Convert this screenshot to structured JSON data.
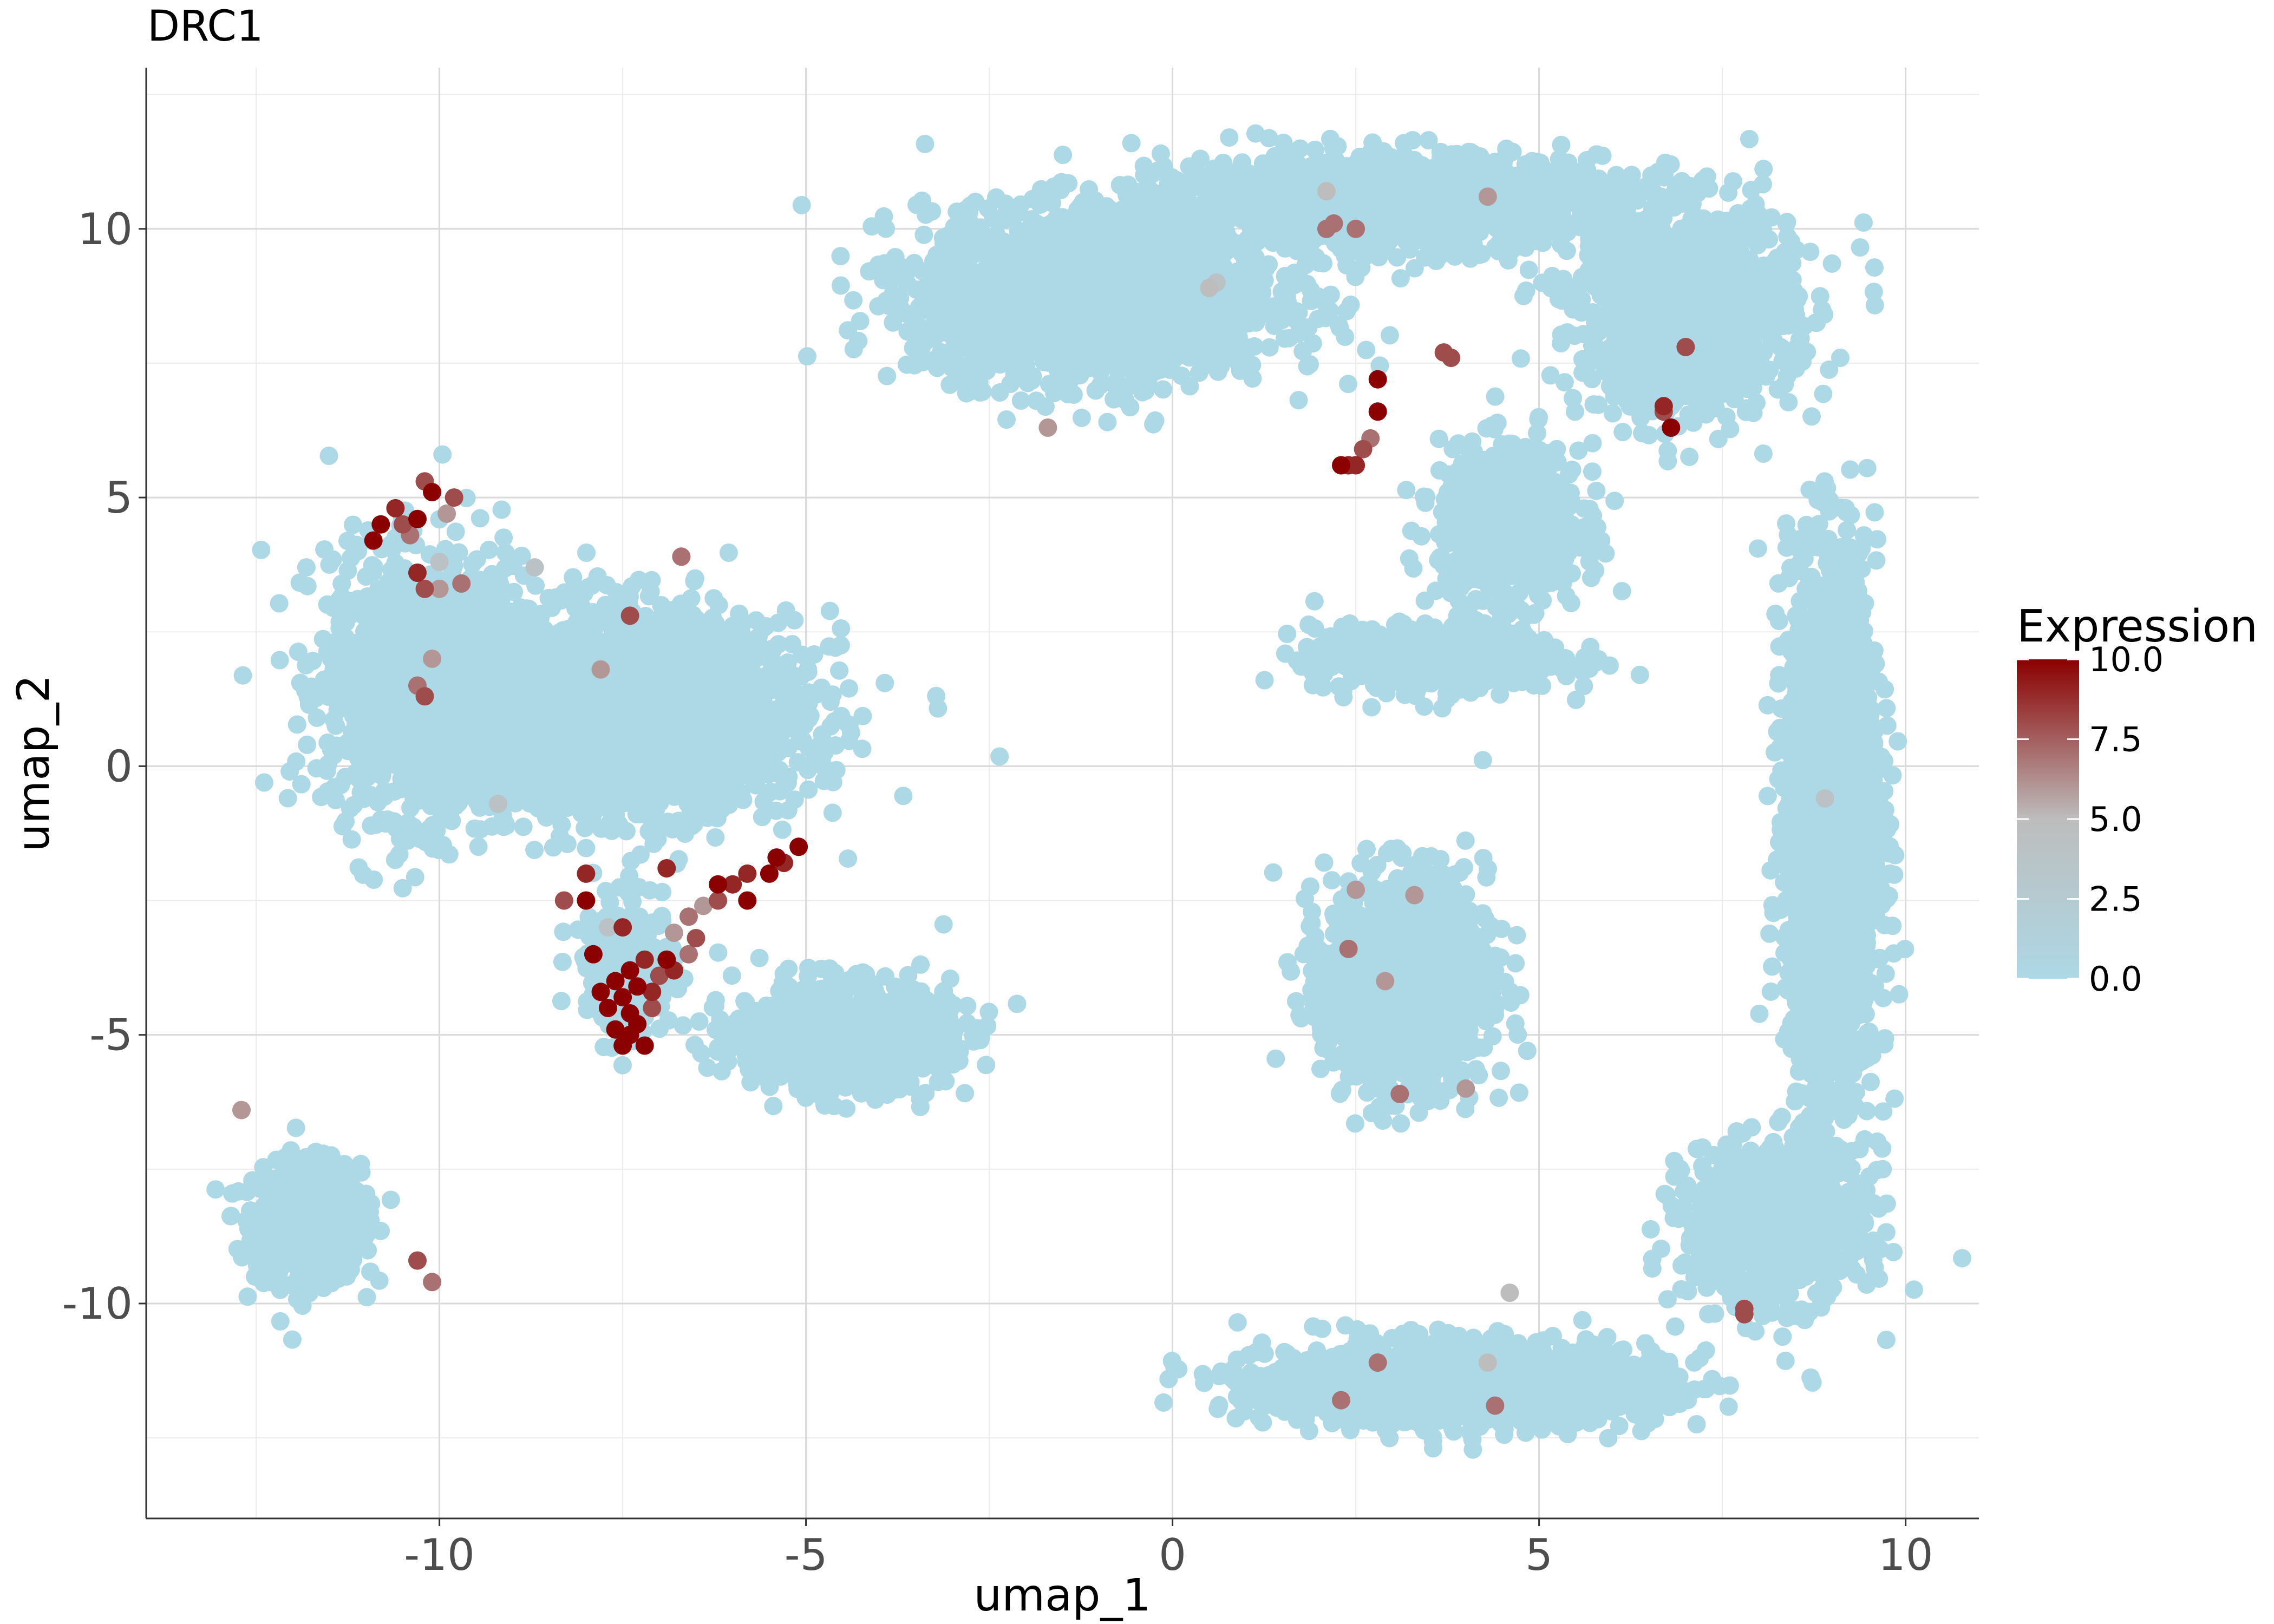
{
  "chart_data": {
    "type": "scatter",
    "title": "DRC1",
    "xlabel": "umap_1",
    "ylabel": "umap_2",
    "xlim": [
      -14,
      11
    ],
    "ylim": [
      -14,
      13
    ],
    "x_ticks": [
      -10,
      -5,
      0,
      5,
      10
    ],
    "y_ticks": [
      -10,
      -5,
      0,
      5,
      10
    ],
    "x_tick_labels": [
      "-10",
      "-5",
      "0",
      "5",
      "10"
    ],
    "y_tick_labels": [
      "-10",
      "-5",
      "0",
      "5",
      "10"
    ],
    "grid": true,
    "legend": {
      "title": "Expression",
      "placement": "right",
      "breaks": [
        10.0,
        7.5,
        5.0,
        2.5,
        0.0
      ],
      "labels": [
        "10.0",
        "7.5",
        "5.0",
        "2.5",
        "0.0"
      ],
      "range": [
        0,
        10
      ]
    },
    "colors": {
      "low": "#add8e6",
      "mid": "#bdbdbd",
      "high": "#8b0000"
    },
    "clusters": [
      {
        "center": [
          -11.8,
          -8.5
        ],
        "spread": [
          0.6,
          0.9
        ],
        "n": 900
      },
      {
        "center": [
          -10.2,
          1.5
        ],
        "spread": [
          1.1,
          2.0
        ],
        "n": 1500
      },
      {
        "center": [
          -7.5,
          1.0
        ],
        "spread": [
          2.0,
          1.5
        ],
        "n": 2600
      },
      {
        "center": [
          -7.4,
          -3.8
        ],
        "spread": [
          0.5,
          1.0
        ],
        "n": 300
      },
      {
        "center": [
          -4.5,
          -5.0
        ],
        "spread": [
          1.2,
          0.8
        ],
        "n": 900
      },
      {
        "center": [
          -1.0,
          8.8
        ],
        "spread": [
          2.0,
          1.3
        ],
        "n": 2200
      },
      {
        "center": [
          3.0,
          10.5
        ],
        "spread": [
          2.5,
          0.7
        ],
        "n": 1500
      },
      {
        "center": [
          7.0,
          8.5
        ],
        "spread": [
          1.2,
          1.6
        ],
        "n": 1200
      },
      {
        "center": [
          9.0,
          -1.0
        ],
        "spread": [
          0.5,
          4.0
        ],
        "n": 2400
      },
      {
        "center": [
          8.2,
          -8.5
        ],
        "spread": [
          1.0,
          1.2
        ],
        "n": 900
      },
      {
        "center": [
          4.0,
          -11.5
        ],
        "spread": [
          2.2,
          0.6
        ],
        "n": 1800
      },
      {
        "center": [
          3.2,
          -4.0
        ],
        "spread": [
          0.9,
          1.6
        ],
        "n": 1400
      },
      {
        "center": [
          3.6,
          2.0
        ],
        "spread": [
          1.4,
          0.5
        ],
        "n": 600
      },
      {
        "center": [
          4.6,
          4.5
        ],
        "spread": [
          0.8,
          1.2
        ],
        "n": 700
      }
    ],
    "expressing_points": [
      [
        -10.9,
        4.2,
        10
      ],
      [
        -10.8,
        4.5,
        10
      ],
      [
        -10.6,
        4.8,
        9
      ],
      [
        -10.5,
        4.5,
        8
      ],
      [
        -10.4,
        4.3,
        7
      ],
      [
        -10.3,
        4.6,
        10
      ],
      [
        -10.2,
        5.3,
        8
      ],
      [
        -10.1,
        5.1,
        10
      ],
      [
        -9.9,
        4.7,
        6
      ],
      [
        -9.8,
        5.0,
        8
      ],
      [
        -10.0,
        3.8,
        4
      ],
      [
        -10.2,
        3.3,
        8
      ],
      [
        -9.7,
        3.4,
        7
      ],
      [
        -10.3,
        3.6,
        9
      ],
      [
        -10.0,
        3.3,
        6
      ],
      [
        -8.7,
        3.7,
        4
      ],
      [
        -6.7,
        3.9,
        7
      ],
      [
        -7.4,
        2.8,
        8
      ],
      [
        -10.1,
        2.0,
        6
      ],
      [
        -10.3,
        1.5,
        7
      ],
      [
        -10.2,
        1.3,
        8
      ],
      [
        -7.8,
        1.8,
        6
      ],
      [
        -9.2,
        -0.7,
        4
      ],
      [
        -8.0,
        -2.0,
        9
      ],
      [
        -8.3,
        -2.5,
        8
      ],
      [
        -8.0,
        -2.5,
        10
      ],
      [
        -7.5,
        -3.0,
        9
      ],
      [
        -7.7,
        -3.0,
        4
      ],
      [
        -7.2,
        -3.6,
        9
      ],
      [
        -7.4,
        -3.8,
        10
      ],
      [
        -7.6,
        -4.0,
        10
      ],
      [
        -7.3,
        -4.1,
        10
      ],
      [
        -7.5,
        -4.3,
        10
      ],
      [
        -7.7,
        -4.5,
        10
      ],
      [
        -7.4,
        -4.6,
        10
      ],
      [
        -7.3,
        -4.8,
        10
      ],
      [
        -7.6,
        -4.9,
        10
      ],
      [
        -7.4,
        -5.0,
        10
      ],
      [
        -7.2,
        -5.2,
        10
      ],
      [
        -7.5,
        -5.2,
        10
      ],
      [
        -7.9,
        -3.5,
        10
      ],
      [
        -7.8,
        -4.2,
        10
      ],
      [
        -7.1,
        -4.2,
        9
      ],
      [
        -7.0,
        -3.9,
        8
      ],
      [
        -6.8,
        -3.8,
        9
      ],
      [
        -6.9,
        -3.6,
        10
      ],
      [
        -6.6,
        -3.5,
        7
      ],
      [
        -6.5,
        -3.2,
        8
      ],
      [
        -6.8,
        -3.1,
        6
      ],
      [
        -6.6,
        -2.8,
        7
      ],
      [
        -6.4,
        -2.6,
        6
      ],
      [
        -6.2,
        -2.5,
        8
      ],
      [
        -6.0,
        -2.2,
        9
      ],
      [
        -5.8,
        -2.0,
        9
      ],
      [
        -5.5,
        -2.0,
        10
      ],
      [
        -5.3,
        -1.8,
        9
      ],
      [
        -5.1,
        -1.5,
        10
      ],
      [
        -5.4,
        -1.7,
        10
      ],
      [
        -6.9,
        -1.9,
        9
      ],
      [
        -6.2,
        -2.2,
        10
      ],
      [
        -5.8,
        -2.5,
        10
      ],
      [
        -7.1,
        -4.5,
        8
      ],
      [
        -12.7,
        -6.4,
        6
      ],
      [
        -10.3,
        -9.2,
        8
      ],
      [
        -10.1,
        -9.6,
        7
      ],
      [
        -1.7,
        6.3,
        6
      ],
      [
        0.5,
        8.9,
        5
      ],
      [
        0.6,
        9.0,
        4
      ],
      [
        2.1,
        10.7,
        5
      ],
      [
        2.1,
        10.0,
        7
      ],
      [
        2.2,
        10.1,
        7
      ],
      [
        2.5,
        10.0,
        7
      ],
      [
        4.3,
        10.6,
        6
      ],
      [
        3.7,
        7.7,
        8
      ],
      [
        3.8,
        7.6,
        8
      ],
      [
        2.8,
        7.2,
        10
      ],
      [
        2.8,
        6.6,
        10
      ],
      [
        2.7,
        6.1,
        7
      ],
      [
        2.6,
        5.9,
        8
      ],
      [
        2.4,
        5.6,
        9
      ],
      [
        2.5,
        5.6,
        9
      ],
      [
        2.3,
        5.6,
        10
      ],
      [
        6.7,
        6.7,
        9
      ],
      [
        6.8,
        6.3,
        10
      ],
      [
        6.7,
        6.6,
        8
      ],
      [
        7.0,
        7.8,
        8
      ],
      [
        8.9,
        -0.6,
        4
      ],
      [
        7.8,
        -10.1,
        8
      ],
      [
        7.8,
        -10.2,
        8
      ],
      [
        2.5,
        -2.3,
        6
      ],
      [
        3.3,
        -2.4,
        6
      ],
      [
        2.4,
        -3.4,
        7
      ],
      [
        2.9,
        -4.0,
        6
      ],
      [
        3.1,
        -6.1,
        7
      ],
      [
        4.0,
        -6.0,
        6
      ],
      [
        4.6,
        -9.8,
        5
      ],
      [
        2.8,
        -11.1,
        7
      ],
      [
        4.3,
        -11.1,
        5
      ],
      [
        2.3,
        -11.8,
        7
      ],
      [
        4.4,
        -11.9,
        7
      ]
    ]
  }
}
